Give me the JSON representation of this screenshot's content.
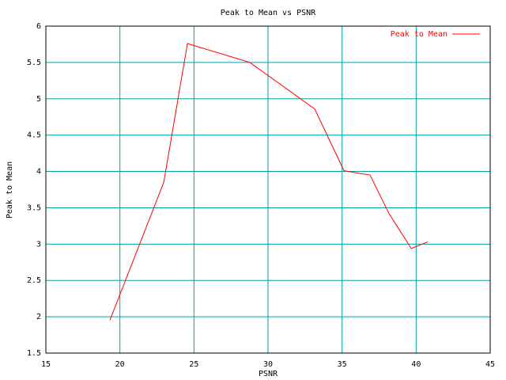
{
  "chart_data": {
    "type": "line",
    "title": "Peak to Mean vs PSNR",
    "x_label": "PSNR",
    "y_label": "Peak to Mean",
    "series": [
      {
        "name": "Peak to Mean",
        "color": "#ff0000",
        "x": [
          19.32,
          22.96,
          24.56,
          28.77,
          33.15,
          35.13,
          36.89,
          38.17,
          39.67,
          40.79
        ],
        "values": [
          1.95,
          3.85,
          5.76,
          5.5,
          4.86,
          4.01,
          3.95,
          3.42,
          2.94,
          3.03
        ]
      }
    ],
    "xlim": [
      15,
      45
    ],
    "xticks": [
      15,
      20,
      25,
      30,
      35,
      40,
      45
    ],
    "ylim": [
      1.5,
      6
    ],
    "yticks": [
      1.5,
      2,
      2.5,
      3,
      3.5,
      4,
      4.5,
      5,
      5.5,
      6
    ],
    "grid": true,
    "grid_color": "#00a0a0",
    "legend": "upper-right"
  }
}
